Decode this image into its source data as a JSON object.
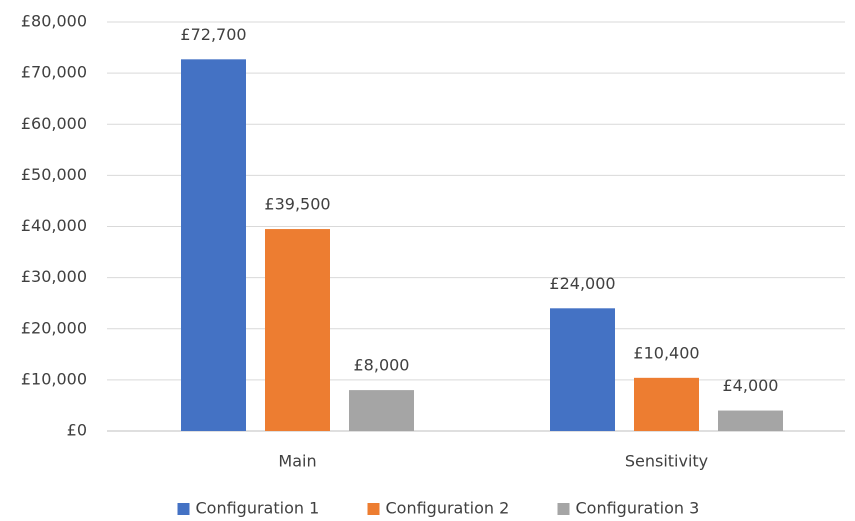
{
  "chart_data": {
    "type": "bar",
    "categories": [
      "Main",
      "Sensitivity"
    ],
    "series": [
      {
        "name": "Configuration 1",
        "color": "#4472c4",
        "values": [
          72700,
          24000
        ],
        "value_labels": [
          "£72,700",
          "£24,000"
        ]
      },
      {
        "name": "Configuration 2",
        "color": "#ed7d31",
        "values": [
          39500,
          10400
        ],
        "value_labels": [
          "£39,500",
          "£10,400"
        ]
      },
      {
        "name": "Configuration 3",
        "color": "#a5a5a5",
        "values": [
          8000,
          4000
        ],
        "value_labels": [
          "£8,000",
          "£4,000"
        ]
      }
    ],
    "ylim": [
      0,
      80000
    ],
    "yticks": [
      {
        "value": 0,
        "label": "£0"
      },
      {
        "value": 10000,
        "label": "£10,000"
      },
      {
        "value": 20000,
        "label": "£20,000"
      },
      {
        "value": 30000,
        "label": "£30,000"
      },
      {
        "value": 40000,
        "label": "£40,000"
      },
      {
        "value": 50000,
        "label": "£50,000"
      },
      {
        "value": 60000,
        "label": "£60,000"
      },
      {
        "value": 70000,
        "label": "£70,000"
      },
      {
        "value": 80000,
        "label": "£80,000"
      }
    ],
    "grid": true,
    "legend": "bottom"
  }
}
